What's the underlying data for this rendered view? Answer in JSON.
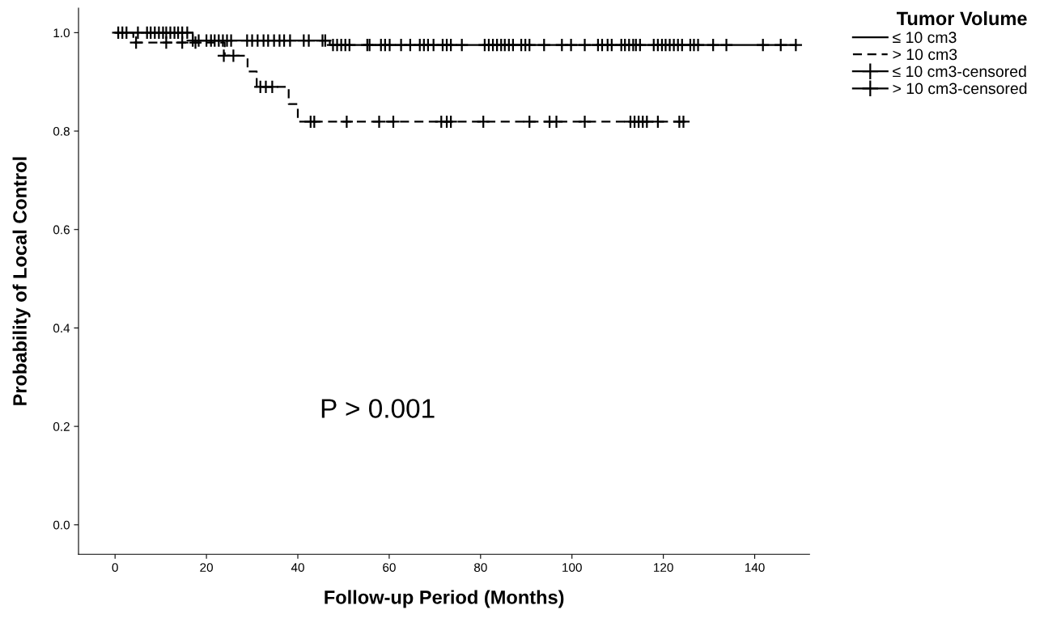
{
  "chart_data": {
    "type": "step",
    "xlabel": "Follow-up Period (Months)",
    "ylabel": "Probability of Local Control",
    "legend_title": "Tumor Volume",
    "legend": "top right",
    "grid": false,
    "xlim": [
      -8,
      152
    ],
    "xticks": [
      0,
      20,
      40,
      60,
      80,
      100,
      120,
      140
    ],
    "ylim": [
      -0.06,
      1.05
    ],
    "yticks": [
      {
        "value": 0,
        "label": "0.0"
      },
      0.2,
      0.4,
      0.6,
      0.8,
      {
        "value": 1,
        "label": "1.0"
      }
    ],
    "annotations": [
      "P > 0.001"
    ],
    "series": [
      {
        "name": "≤ 10 cm3",
        "color": "#000000",
        "line_style": "solid",
        "x": [
          0,
          17,
          47,
          149
        ],
        "values": [
          1,
          0.984,
          0.975,
          0.975
        ]
      },
      {
        "name": "> 10 cm3",
        "color": "#000000",
        "line_style": "dashed",
        "x": [
          0,
          4,
          24,
          29,
          31,
          38,
          40,
          125
        ],
        "values": [
          1,
          0.98,
          0.953,
          0.921,
          0.89,
          0.855,
          0.819,
          0.819
        ]
      },
      {
        "name": "≤ 10 cm3-censored",
        "type": "scatter",
        "marker": "cross",
        "color": "#000000",
        "x": [
          0.7,
          1.6,
          2.5,
          5,
          7,
          7.8,
          8.7,
          9.6,
          10.5,
          11.2,
          12.1,
          13,
          13.8,
          14.7,
          15.8,
          17,
          18.3,
          20,
          21,
          21.8,
          22.7,
          23.6,
          24.5,
          25.4,
          28.9,
          30,
          31.2,
          32.5,
          33.5,
          34.8,
          36,
          37,
          38.3,
          41.3,
          42.4,
          45.4,
          46,
          47.7,
          48.6,
          49.5,
          50.4,
          51.3,
          55.2,
          55.7,
          58.2,
          59.1,
          60.1,
          62.6,
          64.6,
          66.7,
          67.6,
          68.5,
          69.7,
          71.7,
          72.6,
          73.5,
          75.9,
          80.9,
          81.8,
          82.7,
          83.6,
          84.5,
          85.3,
          86.2,
          87.1,
          88.9,
          89.8,
          90.7,
          93.9,
          97.8,
          99.8,
          102.8,
          105.7,
          106.6,
          107.8,
          108.7,
          110.8,
          111.6,
          112.5,
          113.4,
          114,
          114.9,
          117.9,
          118.8,
          119.7,
          120.5,
          121.4,
          122.3,
          123.2,
          124.1,
          125.9,
          126.7,
          127.6,
          130.9,
          133.8,
          141.8,
          145.7,
          149
        ],
        "values": [
          1,
          1,
          1,
          1,
          1,
          1,
          1,
          1,
          1,
          1,
          1,
          1,
          1,
          1,
          1,
          0.984,
          0.984,
          0.984,
          0.984,
          0.984,
          0.984,
          0.984,
          0.984,
          0.984,
          0.984,
          0.984,
          0.984,
          0.984,
          0.984,
          0.984,
          0.984,
          0.984,
          0.984,
          0.984,
          0.984,
          0.984,
          0.984,
          0.975,
          0.975,
          0.975,
          0.975,
          0.975,
          0.975,
          0.975,
          0.975,
          0.975,
          0.975,
          0.975,
          0.975,
          0.975,
          0.975,
          0.975,
          0.975,
          0.975,
          0.975,
          0.975,
          0.975,
          0.975,
          0.975,
          0.975,
          0.975,
          0.975,
          0.975,
          0.975,
          0.975,
          0.975,
          0.975,
          0.975,
          0.975,
          0.975,
          0.975,
          0.975,
          0.975,
          0.975,
          0.975,
          0.975,
          0.975,
          0.975,
          0.975,
          0.975,
          0.975,
          0.975,
          0.975,
          0.975,
          0.975,
          0.975,
          0.975,
          0.975,
          0.975,
          0.975,
          0.975,
          0.975,
          0.975,
          0.975,
          0.975,
          0.975,
          0.975,
          0.975
        ]
      },
      {
        "name": "> 10 cm3-censored",
        "type": "scatter",
        "marker": "cross",
        "color": "#000000",
        "x": [
          4.6,
          11.2,
          14.7,
          17.6,
          23.8,
          25.9,
          31.8,
          33,
          34.4,
          42.8,
          43.6,
          50.7,
          57.8,
          60.9,
          71.4,
          72.6,
          73.5,
          80.6,
          90.7,
          95.1,
          96.6,
          102.8,
          112.8,
          113.7,
          114.6,
          115.5,
          116.4,
          118.8,
          123.5,
          124.4
        ],
        "values": [
          0.98,
          0.98,
          0.98,
          0.98,
          0.953,
          0.953,
          0.89,
          0.89,
          0.89,
          0.819,
          0.819,
          0.819,
          0.819,
          0.819,
          0.819,
          0.819,
          0.819,
          0.819,
          0.819,
          0.819,
          0.819,
          0.819,
          0.819,
          0.819,
          0.819,
          0.819,
          0.819,
          0.819,
          0.819,
          0.819
        ]
      }
    ]
  }
}
